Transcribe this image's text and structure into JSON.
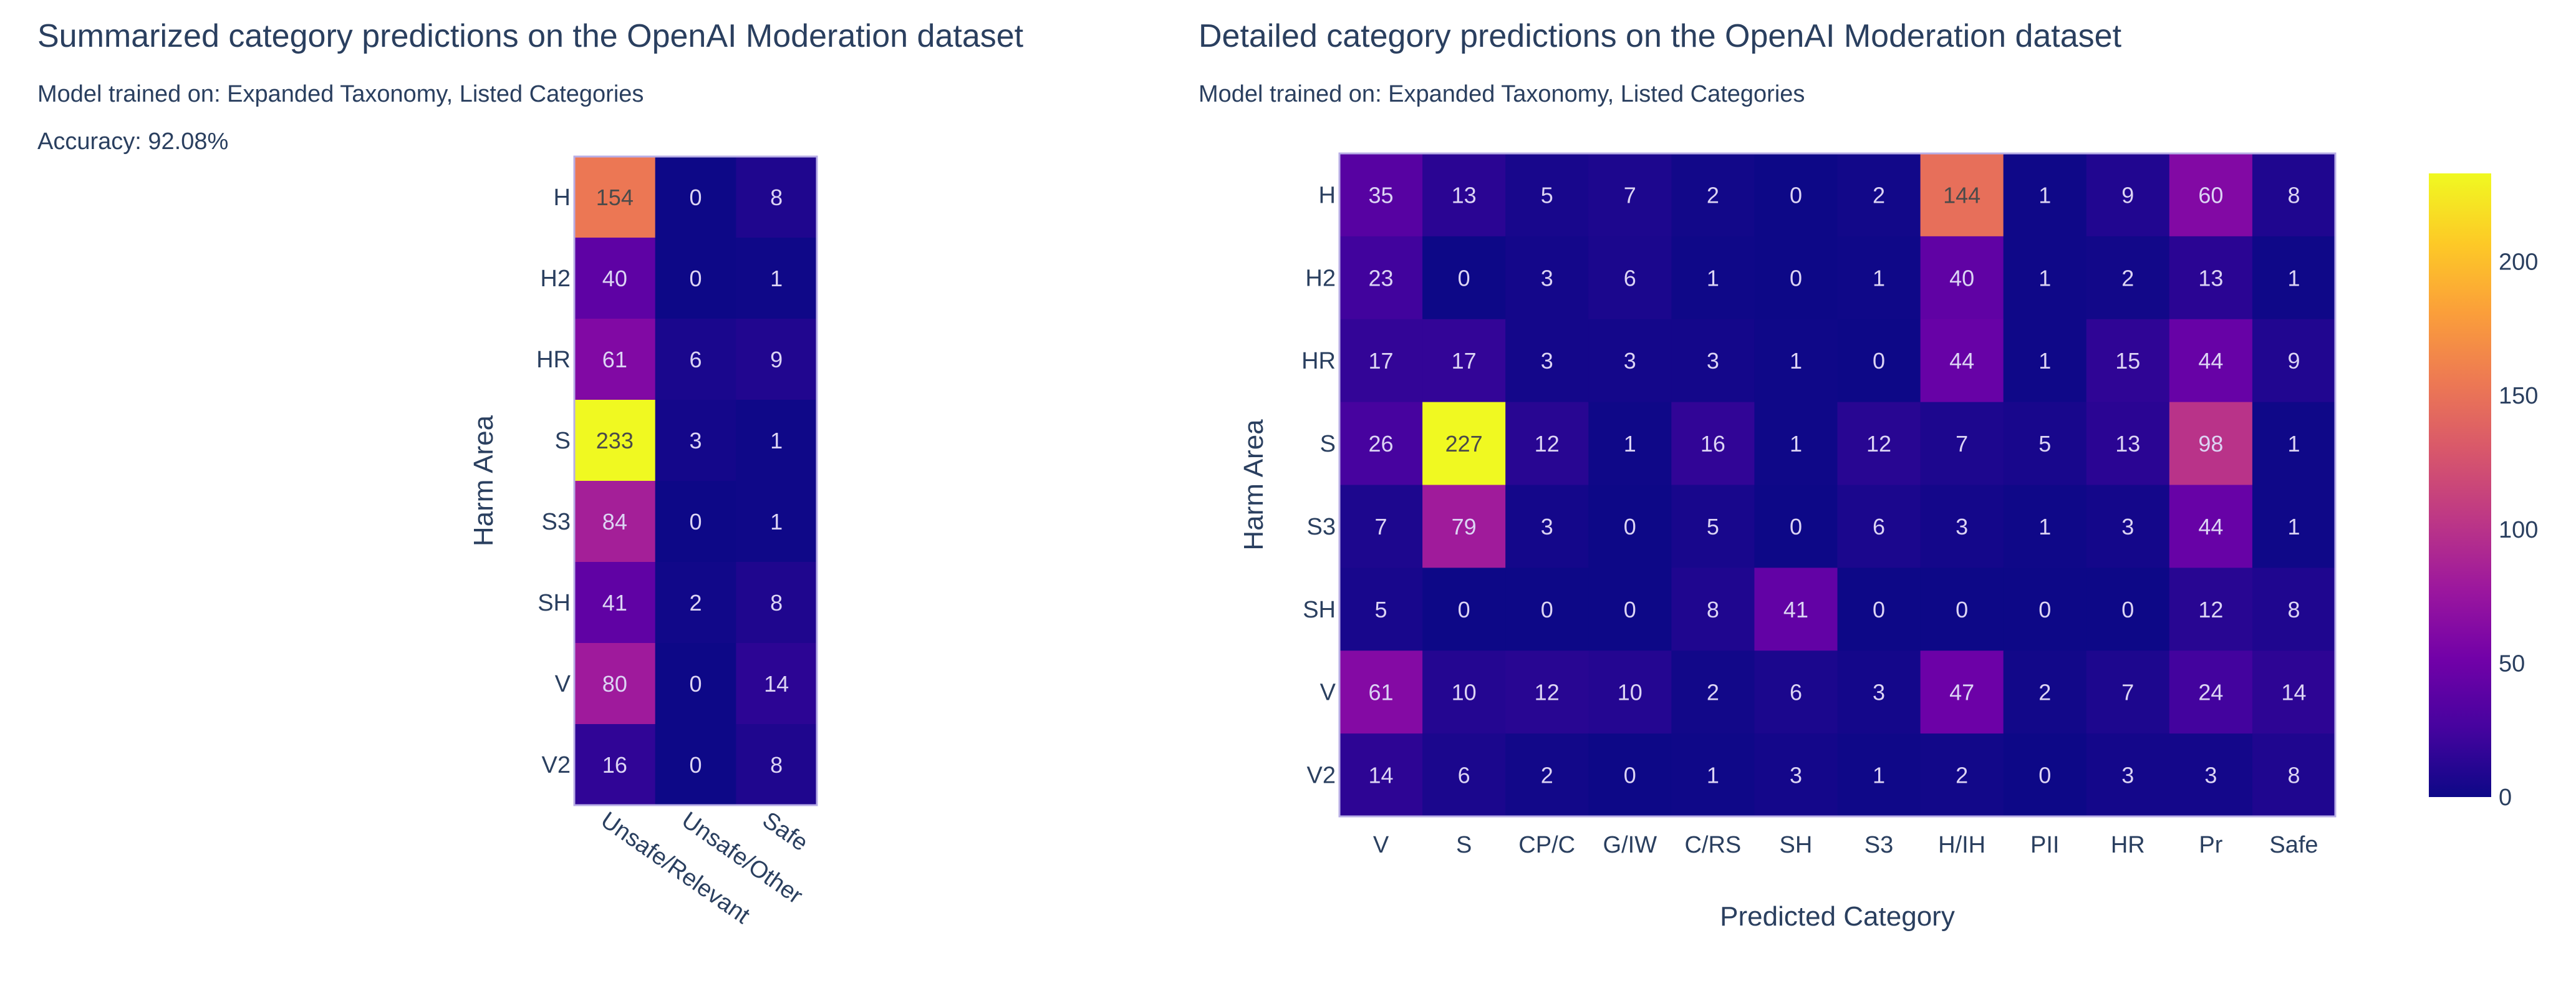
{
  "chart_data": [
    {
      "type": "heatmap",
      "title": "Summarized category predictions on the OpenAI Moderation dataset",
      "subtitle": "Model trained on: Expanded Taxonomy, Listed Categories",
      "annotation": "Accuracy: 92.08%",
      "ylabel": "Harm Area",
      "xlabel": "",
      "rows": [
        "H",
        "H2",
        "HR",
        "S",
        "S3",
        "SH",
        "V",
        "V2"
      ],
      "columns": [
        "Unsafe/Relevant",
        "Unsafe/Other",
        "Safe"
      ],
      "values": [
        [
          154,
          0,
          8
        ],
        [
          40,
          0,
          1
        ],
        [
          61,
          6,
          9
        ],
        [
          233,
          3,
          1
        ],
        [
          84,
          0,
          1
        ],
        [
          41,
          2,
          8
        ],
        [
          80,
          0,
          14
        ],
        [
          16,
          0,
          8
        ]
      ],
      "colorscale": "plasma",
      "zrange": [
        0,
        233
      ]
    },
    {
      "type": "heatmap",
      "title": "Detailed category predictions on the OpenAI Moderation dataset",
      "subtitle": "Model trained on: Expanded Taxonomy, Listed Categories",
      "ylabel": "Harm Area",
      "xlabel": "Predicted Category",
      "rows": [
        "H",
        "H2",
        "HR",
        "S",
        "S3",
        "SH",
        "V",
        "V2"
      ],
      "columns": [
        "V",
        "S",
        "CP/C",
        "G/IW",
        "C/RS",
        "SH",
        "S3",
        "H/IH",
        "PII",
        "HR",
        "Pr",
        "Safe"
      ],
      "values": [
        [
          35,
          13,
          5,
          7,
          2,
          0,
          2,
          144,
          1,
          9,
          60,
          8
        ],
        [
          23,
          0,
          3,
          6,
          1,
          0,
          1,
          40,
          1,
          2,
          13,
          1
        ],
        [
          17,
          17,
          3,
          3,
          3,
          1,
          0,
          44,
          1,
          15,
          44,
          9
        ],
        [
          26,
          227,
          12,
          1,
          16,
          1,
          12,
          7,
          5,
          13,
          98,
          1
        ],
        [
          7,
          79,
          3,
          0,
          5,
          0,
          6,
          3,
          1,
          3,
          44,
          1
        ],
        [
          5,
          0,
          0,
          0,
          8,
          41,
          0,
          0,
          0,
          0,
          12,
          8
        ],
        [
          61,
          10,
          12,
          10,
          2,
          6,
          3,
          47,
          2,
          7,
          24,
          14
        ],
        [
          14,
          6,
          2,
          0,
          1,
          3,
          1,
          2,
          0,
          3,
          3,
          8
        ]
      ],
      "colorscale": "plasma",
      "zrange": [
        0,
        227
      ],
      "colorbar": {
        "ticks": [
          0,
          50,
          100,
          150,
          200
        ],
        "tick_labels": [
          "0",
          "50",
          "100",
          "150",
          "200"
        ],
        "range": [
          0,
          233
        ]
      }
    }
  ],
  "colors": {
    "text": "#2a3f5f",
    "plasma": [
      "#0d0887",
      "#46039f",
      "#7201a8",
      "#9c179e",
      "#bd3786",
      "#d8576b",
      "#ed7953",
      "#fb9f3a",
      "#fdca26",
      "#f0f921"
    ]
  }
}
